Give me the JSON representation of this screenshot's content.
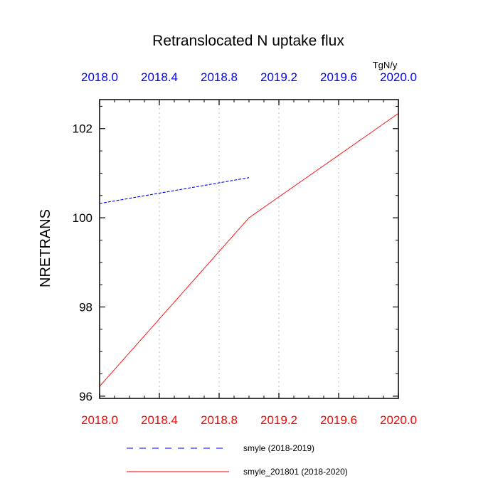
{
  "chart_data": {
    "type": "line",
    "title": "Retranslocated N uptake flux",
    "units": "TgN/y",
    "ylabel": "NRETRANS",
    "xlim": [
      2018.0,
      2020.0
    ],
    "ylim": [
      95.95,
      102.65
    ],
    "yticks": [
      96,
      98,
      100,
      102
    ],
    "yticks_labels": [
      "96",
      "98",
      "100",
      "102"
    ],
    "x_bottom_ticks": [
      "2018.0",
      "2018.4",
      "2018.8",
      "2019.2",
      "2019.6",
      "2020.0"
    ],
    "x_top_ticks": [
      "2018.0",
      "2018.4",
      "2018.8",
      "2019.2",
      "2019.6",
      "2020.0"
    ],
    "x_bottom_color": "#ff0000",
    "x_top_color": "#0000ff",
    "grid": "vertical dotted",
    "legend_position": "bottom",
    "series": [
      {
        "name": "smyle (2018-2019)",
        "color": "#0000ff",
        "style": "dashed",
        "x": [
          2018.0,
          2019.0
        ],
        "y": [
          100.32,
          100.9
        ]
      },
      {
        "name": "smyle_201801 (2018-2020)",
        "color": "#ff0000",
        "style": "solid",
        "x": [
          2018.0,
          2019.0,
          2020.0
        ],
        "y": [
          96.22,
          100.0,
          102.34
        ]
      }
    ]
  }
}
